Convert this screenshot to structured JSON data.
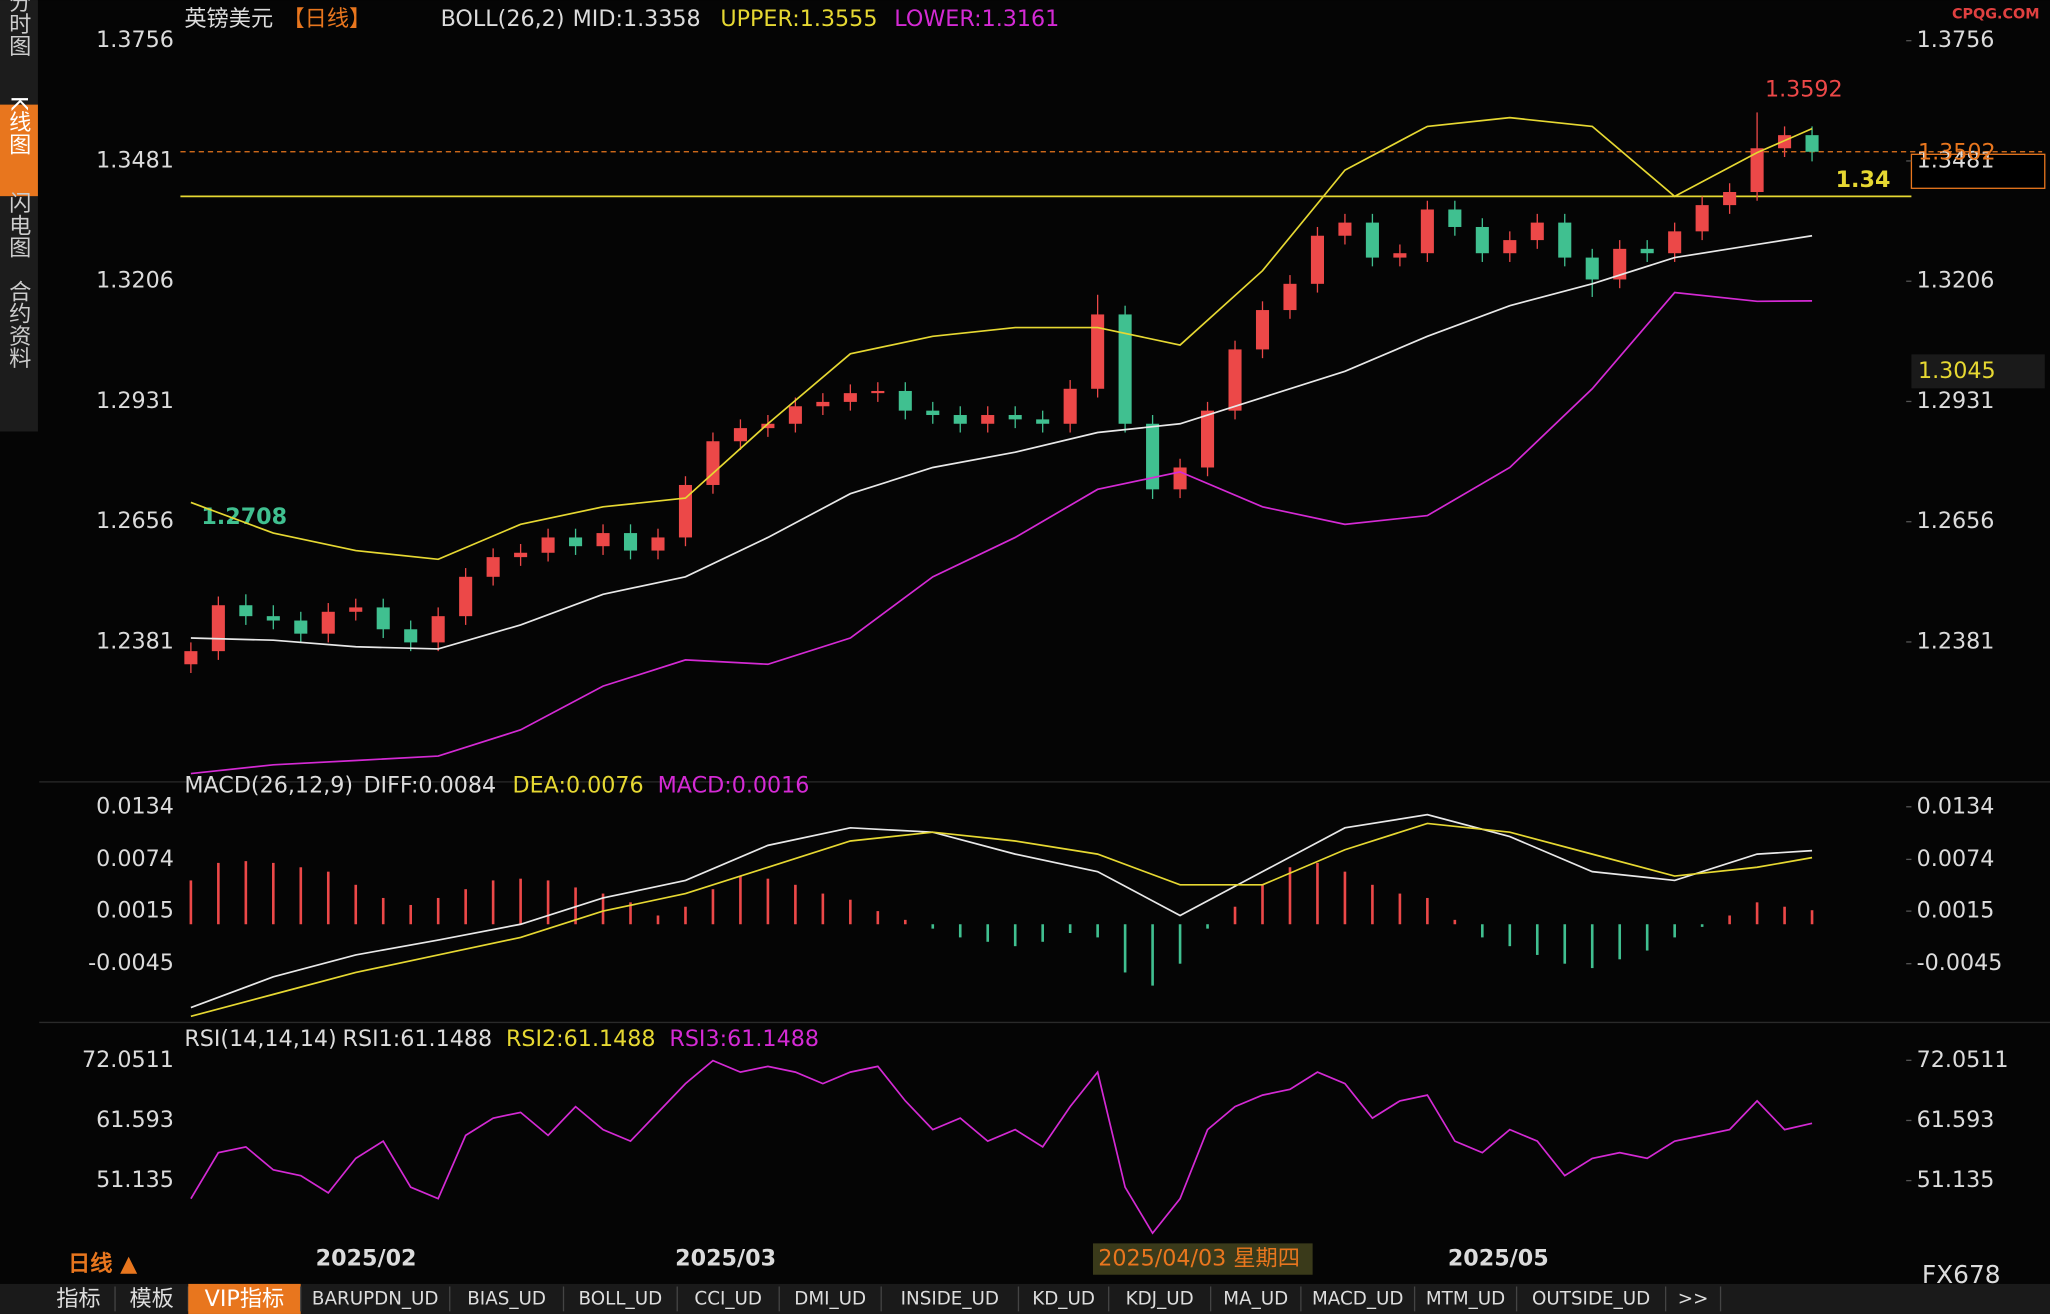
{
  "header": {
    "symbol": "英镑美元",
    "period": "【日线】",
    "indicator": "BOLL(26,2)",
    "mid": "MID:1.3358",
    "upper": "UPPER:1.3555",
    "lower": "LOWER:1.3161"
  },
  "watermark": "CPQG.COM",
  "side_tabs": [
    "分时图",
    "K线图",
    "闪电图",
    "合约资料"
  ],
  "main": {
    "ylim": [
      1.2085,
      1.3849
    ],
    "yticks": [
      1.3756,
      1.3481,
      1.3206,
      1.2931,
      1.2656,
      1.2381
    ],
    "candles": [
      [
        1.233,
        1.238,
        1.231,
        1.236
      ],
      [
        1.236,
        1.2485,
        1.234,
        1.2465
      ],
      [
        1.2465,
        1.249,
        1.242,
        1.244
      ],
      [
        1.244,
        1.2465,
        1.241,
        1.243
      ],
      [
        1.243,
        1.245,
        1.238,
        1.24
      ],
      [
        1.24,
        1.247,
        1.238,
        1.245
      ],
      [
        1.245,
        1.248,
        1.243,
        1.246
      ],
      [
        1.246,
        1.248,
        1.239,
        1.241
      ],
      [
        1.241,
        1.243,
        1.236,
        1.238
      ],
      [
        1.238,
        1.246,
        1.236,
        1.244
      ],
      [
        1.244,
        1.255,
        1.242,
        1.253
      ],
      [
        1.253,
        1.2595,
        1.251,
        1.2575
      ],
      [
        1.2575,
        1.2605,
        1.2555,
        1.2585
      ],
      [
        1.2585,
        1.264,
        1.2565,
        1.262
      ],
      [
        1.262,
        1.264,
        1.258,
        1.26
      ],
      [
        1.26,
        1.265,
        1.258,
        1.263
      ],
      [
        1.263,
        1.265,
        1.257,
        1.259
      ],
      [
        1.259,
        1.264,
        1.257,
        1.262
      ],
      [
        1.262,
        1.276,
        1.26,
        1.274
      ],
      [
        1.274,
        1.286,
        1.272,
        1.284
      ],
      [
        1.284,
        1.289,
        1.282,
        1.287
      ],
      [
        1.287,
        1.29,
        1.285,
        1.288
      ],
      [
        1.288,
        1.294,
        1.286,
        1.292
      ],
      [
        1.292,
        1.295,
        1.29,
        1.293
      ],
      [
        1.293,
        1.297,
        1.291,
        1.295
      ],
      [
        1.295,
        1.2975,
        1.293,
        1.2955
      ],
      [
        1.2955,
        1.2975,
        1.289,
        1.291
      ],
      [
        1.291,
        1.293,
        1.288,
        1.29
      ],
      [
        1.29,
        1.292,
        1.286,
        1.288
      ],
      [
        1.288,
        1.292,
        1.286,
        1.29
      ],
      [
        1.29,
        1.292,
        1.287,
        1.289
      ],
      [
        1.289,
        1.291,
        1.286,
        1.288
      ],
      [
        1.288,
        1.298,
        1.286,
        1.296
      ],
      [
        1.296,
        1.3175,
        1.294,
        1.313
      ],
      [
        1.313,
        1.315,
        1.286,
        1.288
      ],
      [
        1.288,
        1.29,
        1.2708,
        1.273
      ],
      [
        1.273,
        1.28,
        1.271,
        1.278
      ],
      [
        1.278,
        1.293,
        1.276,
        1.291
      ],
      [
        1.291,
        1.307,
        1.289,
        1.305
      ],
      [
        1.305,
        1.316,
        1.303,
        1.314
      ],
      [
        1.314,
        1.322,
        1.312,
        1.32
      ],
      [
        1.32,
        1.333,
        1.318,
        1.331
      ],
      [
        1.331,
        1.336,
        1.329,
        1.334
      ],
      [
        1.334,
        1.336,
        1.324,
        1.326
      ],
      [
        1.326,
        1.329,
        1.324,
        1.327
      ],
      [
        1.327,
        1.339,
        1.325,
        1.337
      ],
      [
        1.337,
        1.339,
        1.331,
        1.333
      ],
      [
        1.333,
        1.335,
        1.325,
        1.327
      ],
      [
        1.327,
        1.332,
        1.325,
        1.33
      ],
      [
        1.33,
        1.336,
        1.328,
        1.334
      ],
      [
        1.334,
        1.336,
        1.324,
        1.326
      ],
      [
        1.326,
        1.328,
        1.317,
        1.321
      ],
      [
        1.321,
        1.33,
        1.319,
        1.328
      ],
      [
        1.328,
        1.33,
        1.325,
        1.327
      ],
      [
        1.327,
        1.334,
        1.325,
        1.332
      ],
      [
        1.332,
        1.34,
        1.33,
        1.338
      ],
      [
        1.338,
        1.343,
        1.336,
        1.341
      ],
      [
        1.341,
        1.3592,
        1.339,
        1.351
      ],
      [
        1.351,
        1.356,
        1.349,
        1.354
      ],
      [
        1.354,
        1.356,
        1.348,
        1.3502
      ]
    ],
    "line_x": [
      0,
      3,
      6,
      9,
      12,
      15,
      18,
      21,
      24,
      27,
      30,
      33,
      36,
      39,
      42,
      45,
      48,
      51,
      54,
      57,
      59
    ],
    "boll": [
      {
        "name": "MID",
        "color": "#e8e8e8",
        "values": [
          1.239,
          1.2385,
          1.237,
          1.2365,
          1.242,
          1.249,
          1.253,
          1.262,
          1.272,
          1.278,
          1.2815,
          1.286,
          1.288,
          1.294,
          1.3,
          1.308,
          1.315,
          1.32,
          1.326,
          1.329,
          1.331
        ]
      },
      {
        "name": "UPPER",
        "color": "#e6d832",
        "values": [
          1.27,
          1.263,
          1.259,
          1.257,
          1.265,
          1.269,
          1.271,
          1.288,
          1.304,
          1.308,
          1.31,
          1.31,
          1.306,
          1.323,
          1.346,
          1.356,
          1.358,
          1.356,
          1.34,
          1.35,
          1.3555
        ]
      },
      {
        "name": "LOWER",
        "color": "#d42ad4",
        "values": [
          1.208,
          1.21,
          1.211,
          1.212,
          1.218,
          1.228,
          1.234,
          1.233,
          1.239,
          1.253,
          1.262,
          1.273,
          1.277,
          1.269,
          1.265,
          1.267,
          1.278,
          1.296,
          1.318,
          1.316,
          1.3161
        ]
      }
    ],
    "high_label": 1.3592,
    "low_label": 1.2708,
    "level_line": 1.34,
    "last_price": 1.3502,
    "side_tag": 1.3045
  },
  "macd": {
    "title": "MACD(26,12,9)",
    "diff_label": "DIFF:0.0084",
    "dea_label": "DEA:0.0076",
    "macd_label": "MACD:0.0016",
    "ylim": [
      -0.0109,
      0.0152
    ],
    "yticks": [
      0.0134,
      0.0074,
      0.0015,
      -0.0045
    ],
    "hist": [
      0.005,
      0.007,
      0.0072,
      0.007,
      0.0065,
      0.006,
      0.0045,
      0.003,
      0.0022,
      0.003,
      0.004,
      0.005,
      0.0052,
      0.005,
      0.0042,
      0.0035,
      0.0025,
      0.001,
      0.002,
      0.004,
      0.0055,
      0.0052,
      0.0045,
      0.0035,
      0.0028,
      0.0015,
      0.0005,
      -0.0005,
      -0.0015,
      -0.002,
      -0.0025,
      -0.002,
      -0.001,
      -0.0015,
      -0.0055,
      -0.007,
      -0.0045,
      -0.0005,
      0.002,
      0.0045,
      0.0065,
      0.007,
      0.006,
      0.0045,
      0.0035,
      0.003,
      0.0005,
      -0.0015,
      -0.0025,
      -0.0035,
      -0.0045,
      -0.005,
      -0.004,
      -0.003,
      -0.0015,
      -0.0003,
      0.001,
      0.0025,
      0.002,
      0.0016
    ],
    "lines": [
      {
        "name": "DIFF",
        "color": "#e8e8e8",
        "values": [
          -0.0095,
          -0.006,
          -0.0035,
          -0.0018,
          0.0,
          0.003,
          0.005,
          0.009,
          0.011,
          0.0105,
          0.008,
          0.006,
          0.001,
          0.006,
          0.011,
          0.0125,
          0.01,
          0.006,
          0.005,
          0.008,
          0.0084
        ]
      },
      {
        "name": "DEA",
        "color": "#e6d832",
        "values": [
          -0.0105,
          -0.008,
          -0.0055,
          -0.0035,
          -0.0015,
          0.0015,
          0.0035,
          0.0065,
          0.0095,
          0.0105,
          0.0095,
          0.008,
          0.0045,
          0.0045,
          0.0085,
          0.0115,
          0.0105,
          0.008,
          0.0055,
          0.0065,
          0.0076
        ]
      }
    ]
  },
  "rsi": {
    "title": "RSI(14,14,14)",
    "rsi1": "RSI1:61.1488",
    "rsi2": "RSI2:61.1488",
    "rsi3": "RSI3:61.1488",
    "ylim": [
      40.45,
      74.55
    ],
    "yticks": [
      72.0511,
      61.593,
      51.135
    ],
    "color": "#d42ad4",
    "values": [
      48,
      56,
      57,
      53,
      52,
      49,
      55,
      58,
      50,
      48,
      59,
      62,
      63,
      59,
      64,
      60,
      58,
      63,
      68,
      72,
      70,
      71,
      70,
      68,
      70,
      71,
      65,
      60,
      62,
      58,
      60,
      57,
      64,
      70,
      50,
      42,
      48,
      60,
      64,
      66,
      67,
      70,
      68,
      62,
      65,
      66,
      58,
      56,
      60,
      58,
      52,
      55,
      56,
      55,
      58,
      59,
      60,
      65,
      60,
      61.1
    ]
  },
  "x_labels": [
    "2025/02",
    "2025/03",
    "2025/05"
  ],
  "tooltip": "2025/04/03 星期四",
  "period_button": "日线 ▲",
  "brand": "FX678",
  "toolbar": [
    "指标",
    "模板",
    "VIP指标",
    "BARUPDN_UD",
    "BIAS_UD",
    "BOLL_UD",
    "CCI_UD",
    "DMI_UD",
    "INSIDE_UD",
    "KD_UD",
    "KDJ_UD",
    "MA_UD",
    "MACD_UD",
    "MTM_UD",
    "OUTSIDE_UD",
    ">>"
  ]
}
